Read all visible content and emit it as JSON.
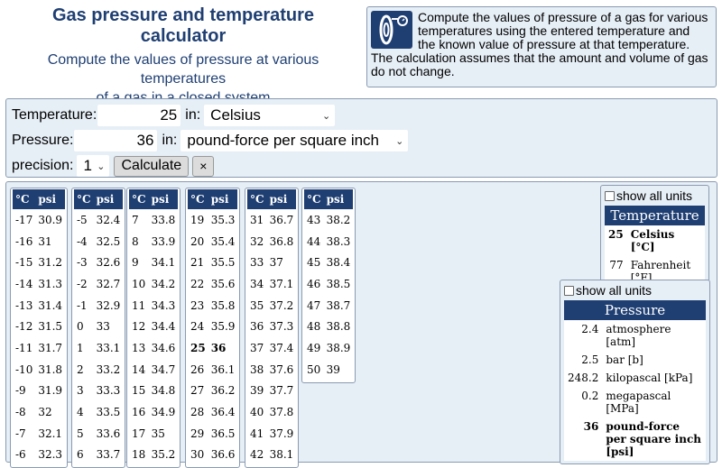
{
  "header": {
    "title": "Gas pressure and temperature calculator",
    "subtitle_lines": [
      "Compute the values of pressure at various",
      "temperatures",
      "of a gas in a closed system"
    ]
  },
  "description": {
    "text": "Compute the values of pressure of a gas for various temperatures using the entered temperature and the known value of pressure at that temperature. The calculation assumes that the amount and volume of gas do not change.",
    "icon": "tire-pressure-gauge-icon"
  },
  "form": {
    "temperature_label": "Temperature:",
    "temperature_value": "25",
    "in_label": "in:",
    "temperature_unit": "Celsius",
    "pressure_label": "Pressure:",
    "pressure_value": "36",
    "pressure_unit": "pound-force per square inch",
    "precision_label": "precision:",
    "precision_value": "1",
    "calculate_label": "Calculate",
    "clear_label": "×"
  },
  "table_headers": {
    "temp": "°C",
    "pressure": "psi"
  },
  "tables": [
    [
      [
        "-17",
        "30.9"
      ],
      [
        "-16",
        "31"
      ],
      [
        "-15",
        "31.2"
      ],
      [
        "-14",
        "31.3"
      ],
      [
        "-13",
        "31.4"
      ],
      [
        "-12",
        "31.5"
      ],
      [
        "-11",
        "31.7"
      ],
      [
        "-10",
        "31.8"
      ],
      [
        "-9",
        "31.9"
      ],
      [
        "-8",
        "32"
      ],
      [
        "-7",
        "32.1"
      ],
      [
        "-6",
        "32.3"
      ]
    ],
    [
      [
        "-5",
        "32.4"
      ],
      [
        "-4",
        "32.5"
      ],
      [
        "-3",
        "32.6"
      ],
      [
        "-2",
        "32.7"
      ],
      [
        "-1",
        "32.9"
      ],
      [
        "0",
        "33"
      ],
      [
        "1",
        "33.1"
      ],
      [
        "2",
        "33.2"
      ],
      [
        "3",
        "33.3"
      ],
      [
        "4",
        "33.5"
      ],
      [
        "5",
        "33.6"
      ],
      [
        "6",
        "33.7"
      ]
    ],
    [
      [
        "7",
        "33.8"
      ],
      [
        "8",
        "33.9"
      ],
      [
        "9",
        "34.1"
      ],
      [
        "10",
        "34.2"
      ],
      [
        "11",
        "34.3"
      ],
      [
        "12",
        "34.4"
      ],
      [
        "13",
        "34.6"
      ],
      [
        "14",
        "34.7"
      ],
      [
        "15",
        "34.8"
      ],
      [
        "16",
        "34.9"
      ],
      [
        "17",
        "35"
      ],
      [
        "18",
        "35.2"
      ]
    ],
    [
      [
        "19",
        "35.3"
      ],
      [
        "20",
        "35.4"
      ],
      [
        "21",
        "35.5"
      ],
      [
        "22",
        "35.6"
      ],
      [
        "23",
        "35.8"
      ],
      [
        "24",
        "35.9"
      ],
      [
        "25",
        "36"
      ],
      [
        "26",
        "36.1"
      ],
      [
        "27",
        "36.2"
      ],
      [
        "28",
        "36.4"
      ],
      [
        "29",
        "36.5"
      ],
      [
        "30",
        "36.6"
      ]
    ],
    [
      [
        "31",
        "36.7"
      ],
      [
        "32",
        "36.8"
      ],
      [
        "33",
        "37"
      ],
      [
        "34",
        "37.1"
      ],
      [
        "35",
        "37.2"
      ],
      [
        "36",
        "37.3"
      ],
      [
        "37",
        "37.4"
      ],
      [
        "38",
        "37.6"
      ],
      [
        "39",
        "37.7"
      ],
      [
        "40",
        "37.8"
      ],
      [
        "41",
        "37.9"
      ],
      [
        "42",
        "38.1"
      ]
    ],
    [
      [
        "43",
        "38.2"
      ],
      [
        "44",
        "38.3"
      ],
      [
        "45",
        "38.4"
      ],
      [
        "46",
        "38.5"
      ],
      [
        "47",
        "38.7"
      ],
      [
        "48",
        "38.8"
      ],
      [
        "49",
        "38.9"
      ],
      [
        "50",
        "39"
      ]
    ]
  ],
  "highlight_temp": "25",
  "temperature_box": {
    "show_all_label": "show all units",
    "heading": "Temperature",
    "rows": [
      {
        "value": "25",
        "unit": "Celsius [°C]",
        "bold": true
      },
      {
        "value": "77",
        "unit": "Fahrenheit [°F]",
        "bold": false
      }
    ]
  },
  "pressure_box": {
    "show_all_label": "show all units",
    "heading": "Pressure",
    "rows": [
      {
        "value": "2.4",
        "unit": "atmosphere [atm]",
        "bold": false
      },
      {
        "value": "2.5",
        "unit": "bar [b]",
        "bold": false
      },
      {
        "value": "248.2",
        "unit": "kilopascal [kPa]",
        "bold": false
      },
      {
        "value": "0.2",
        "unit": "megapascal [MPa]",
        "bold": false
      },
      {
        "value": "36",
        "unit": "pound-force per square inch [psi]",
        "bold": true
      }
    ]
  },
  "colors": {
    "accent": "#1f3f73",
    "panel": "#e6eef6",
    "border": "#8a9bb2"
  }
}
